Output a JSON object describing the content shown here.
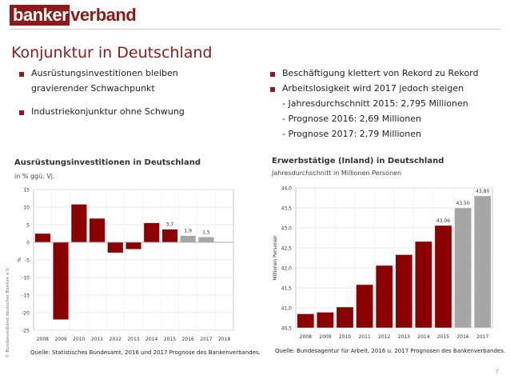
{
  "logo": {
    "part1": "banker",
    "part2": "verband"
  },
  "page_title": "Konjunktur in Deutschland",
  "left_bullets": [
    {
      "line1": "Ausrüstungsinvestitionen bleiben",
      "line2": "gravierender Schwachpunkt"
    },
    {
      "line1": "Industriekonjunktur ohne Schwung",
      "line2": ""
    }
  ],
  "right_bullets": [
    {
      "text": "Beschäftigung klettert von Rekord zu Rekord"
    },
    {
      "text": "Arbeitslosigkeit wird 2017 jedoch steigen"
    }
  ],
  "right_sublines": [
    "- Jahresdurchschnitt 2015: 2,795 Millionen",
    "- Prognose 2016: 2,69 Millionen",
    "- Prognose 2017: 2,79 Millionen"
  ],
  "copyright": "© Bundesverband deutscher Banken e.V.",
  "page_number": "7",
  "colors": {
    "brand": "#8c1a1a",
    "actual": "#8b0000",
    "forecast": "#a6a6a6"
  },
  "chart_data": [
    {
      "type": "bar",
      "title": "Ausrüstungsinvestitionen in Deutschland",
      "subtitle": "in % ggü. Vj.",
      "ylabel": "%",
      "xlabel": "",
      "ylim": [
        -25,
        15
      ],
      "yticks": [
        15,
        10,
        5,
        0,
        -5,
        -10,
        -15,
        -20,
        -25
      ],
      "categories": [
        "2008",
        "2009",
        "2010",
        "2011",
        "2012",
        "2013",
        "2014",
        "2015",
        "2016",
        "2017",
        "2018"
      ],
      "values": [
        2.5,
        -22.0,
        10.8,
        6.8,
        -3.0,
        -2.0,
        5.5,
        3.7,
        1.9,
        1.5,
        null
      ],
      "forecast": [
        false,
        false,
        false,
        false,
        false,
        false,
        false,
        false,
        true,
        true,
        false
      ],
      "labels": [
        "",
        "",
        "",
        "",
        "",
        "",
        "",
        "3,7",
        "1,9",
        "1,5",
        ""
      ],
      "source": "Quelle: Statistisches Bundesamt, 2016 und 2017 Prognose des Bankenverbandes."
    },
    {
      "type": "bar",
      "title": "Erwerbstätige (Inland) in Deutschland",
      "subtitle": "Jahresdurchschnitt in Millionen Personen",
      "ylabel": "Millionen Personen",
      "xlabel": "",
      "ylim": [
        40.5,
        44.0
      ],
      "yticks": [
        "44,0",
        "43,5",
        "43,0",
        "42,5",
        "42,0",
        "41,5",
        "41,0",
        "40,5"
      ],
      "categories": [
        "2008",
        "2009",
        "2010",
        "2011",
        "2012",
        "2013",
        "2014",
        "2015",
        "2016",
        "2017"
      ],
      "values": [
        40.85,
        40.89,
        41.02,
        41.58,
        42.06,
        42.33,
        42.66,
        43.06,
        43.5,
        43.8
      ],
      "forecast": [
        false,
        false,
        false,
        false,
        false,
        false,
        false,
        false,
        true,
        true
      ],
      "labels": [
        "",
        "",
        "",
        "",
        "",
        "",
        "",
        "43,06",
        "43,50",
        "43,80"
      ],
      "source": "Quelle: Bundesagentur für Arbeit, 2016 u. 2017 Prognosen des Bankenverbandes."
    }
  ]
}
